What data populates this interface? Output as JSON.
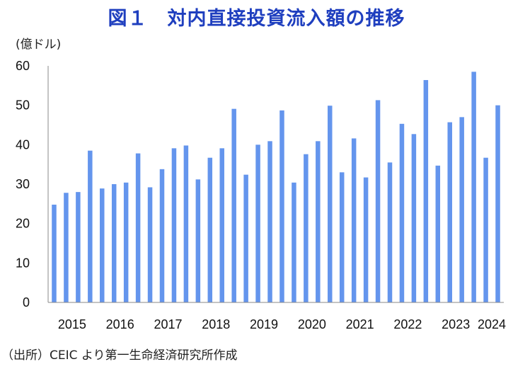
{
  "title": "図１　対内直接投資流入額の推移",
  "unit_label": "(億ドル)",
  "source_note": "（出所）CEIC より第一生命経済研究所作成",
  "colors": {
    "bar": "#6495ed",
    "title": "#1f3fbf",
    "axis": "#888888"
  },
  "chart_data": {
    "type": "bar",
    "title": "図１　対内直接投資流入額の推移",
    "ylabel": "(億ドル)",
    "xlabel": "",
    "ylim": [
      0,
      60
    ],
    "yticks": [
      0,
      10,
      20,
      30,
      40,
      50,
      60
    ],
    "grid": false,
    "x_tick_labels": [
      "2015",
      "2016",
      "2017",
      "2018",
      "2019",
      "2020",
      "2021",
      "2022",
      "2023",
      "2024"
    ],
    "categories": [
      "2015Q1",
      "2015Q2",
      "2015Q3",
      "2015Q4",
      "2016Q1",
      "2016Q2",
      "2016Q3",
      "2016Q4",
      "2017Q1",
      "2017Q2",
      "2017Q3",
      "2017Q4",
      "2018Q1",
      "2018Q2",
      "2018Q3",
      "2018Q4",
      "2019Q1",
      "2019Q2",
      "2019Q3",
      "2019Q4",
      "2020Q1",
      "2020Q2",
      "2020Q3",
      "2020Q4",
      "2021Q1",
      "2021Q2",
      "2021Q3",
      "2021Q4",
      "2022Q1",
      "2022Q2",
      "2022Q3",
      "2022Q4",
      "2023Q1",
      "2023Q2",
      "2023Q3",
      "2023Q4",
      "2024Q1",
      "2024Q2"
    ],
    "values": [
      24.8,
      27.8,
      28.0,
      38.5,
      28.9,
      30.0,
      30.4,
      37.8,
      29.2,
      33.8,
      39.1,
      39.8,
      31.2,
      36.7,
      39.1,
      49.1,
      32.4,
      40.0,
      40.9,
      48.7,
      30.4,
      37.6,
      40.9,
      49.9,
      33.0,
      41.6,
      31.7,
      51.3,
      35.5,
      45.3,
      42.7,
      56.4,
      34.7,
      45.7,
      47.0,
      58.5,
      36.7,
      50.0
    ]
  }
}
